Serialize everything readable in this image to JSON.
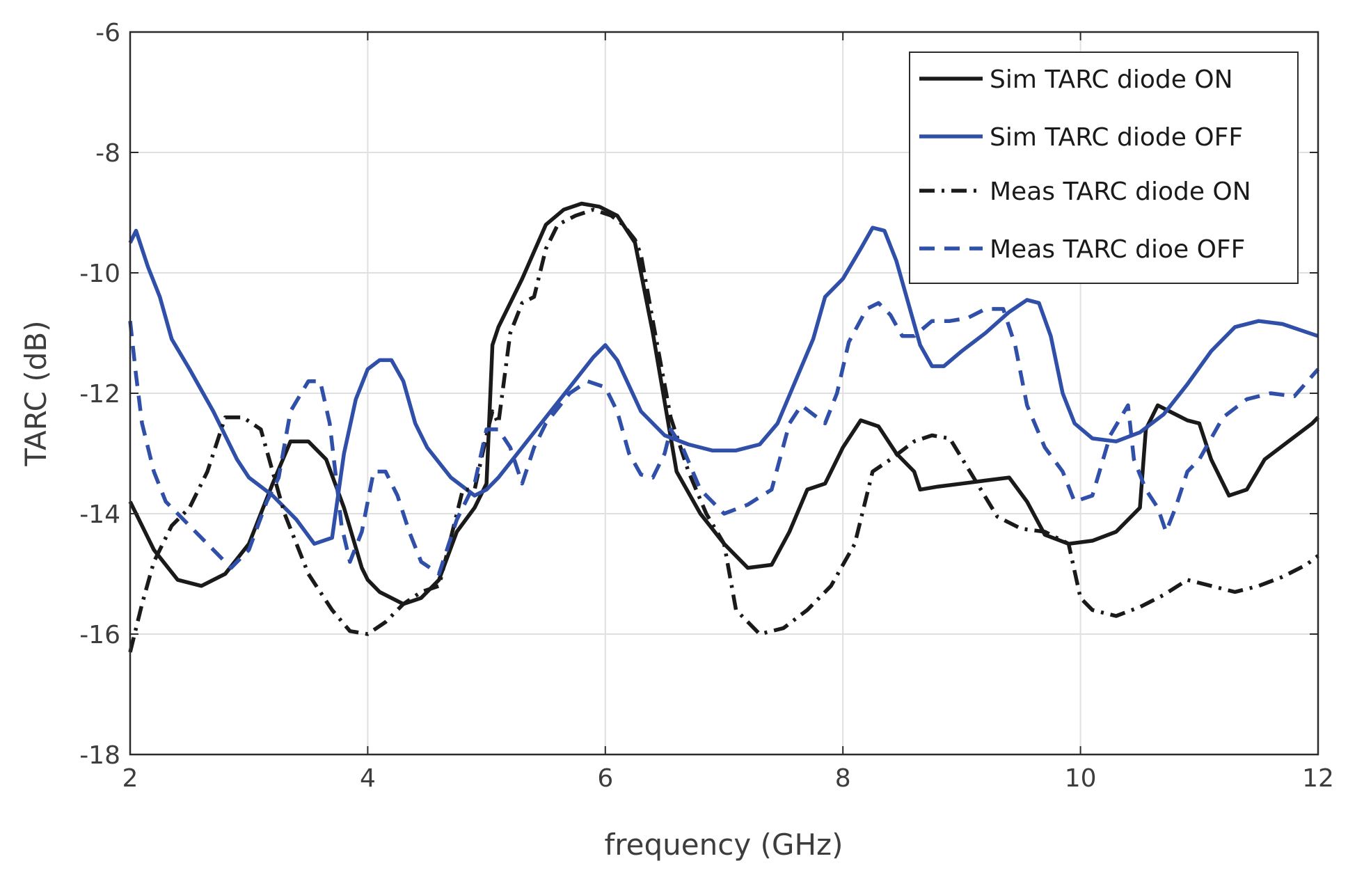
{
  "chart_data": {
    "type": "line",
    "title": "",
    "xlabel": "frequency (GHz)",
    "ylabel": "TARC (dB)",
    "xlim": [
      2,
      12
    ],
    "ylim": [
      -18,
      -6
    ],
    "xticks": [
      2,
      4,
      6,
      8,
      10,
      12
    ],
    "yticks": [
      -18,
      -16,
      -14,
      -12,
      -10,
      -8,
      -6
    ],
    "xtick_labels": [
      "2",
      "4",
      "6",
      "8",
      "10",
      "12"
    ],
    "ytick_labels": [
      "-18",
      "-16",
      "-14",
      "-12",
      "-10",
      "-8",
      "-6"
    ],
    "grid": true,
    "legend_position": "top-right",
    "series": [
      {
        "name": "Sim TARC diode ON",
        "color": "#1a1a1a",
        "dash": "solid",
        "x": [
          2.0,
          2.2,
          2.4,
          2.6,
          2.8,
          3.0,
          3.2,
          3.35,
          3.5,
          3.65,
          3.8,
          3.95,
          4.0,
          4.1,
          4.3,
          4.45,
          4.6,
          4.75,
          4.9,
          5.0,
          5.05,
          5.1,
          5.3,
          5.5,
          5.65,
          5.8,
          5.95,
          6.1,
          6.25,
          6.4,
          6.6,
          6.8,
          7.0,
          7.2,
          7.4,
          7.55,
          7.7,
          7.85,
          8.0,
          8.15,
          8.3,
          8.45,
          8.6,
          8.65,
          8.8,
          9.0,
          9.2,
          9.4,
          9.55,
          9.7,
          9.9,
          10.1,
          10.3,
          10.5,
          10.55,
          10.65,
          10.75,
          10.9,
          11.0,
          11.1,
          11.25,
          11.4,
          11.55,
          11.75,
          11.95,
          12.0
        ],
        "y": [
          -13.8,
          -14.6,
          -15.1,
          -15.2,
          -15.0,
          -14.5,
          -13.5,
          -12.8,
          -12.8,
          -13.1,
          -13.9,
          -14.9,
          -15.1,
          -15.3,
          -15.5,
          -15.4,
          -15.1,
          -14.3,
          -13.9,
          -13.5,
          -11.2,
          -10.9,
          -10.1,
          -9.2,
          -8.95,
          -8.85,
          -8.9,
          -9.05,
          -9.5,
          -11.0,
          -13.3,
          -14.0,
          -14.5,
          -14.9,
          -14.85,
          -14.3,
          -13.6,
          -13.5,
          -12.9,
          -12.45,
          -12.55,
          -13.0,
          -13.3,
          -13.6,
          -13.55,
          -13.5,
          -13.45,
          -13.4,
          -13.8,
          -14.35,
          -14.5,
          -14.45,
          -14.3,
          -13.9,
          -12.6,
          -12.2,
          -12.3,
          -12.45,
          -12.5,
          -13.1,
          -13.7,
          -13.6,
          -13.1,
          -12.8,
          -12.5,
          -12.4
        ]
      },
      {
        "name": "Sim TARC diode OFF",
        "color": "#2f4fa8",
        "dash": "solid",
        "x": [
          2.0,
          2.05,
          2.15,
          2.25,
          2.35,
          2.5,
          2.7,
          2.9,
          3.0,
          3.2,
          3.4,
          3.55,
          3.7,
          3.8,
          3.9,
          4.0,
          4.1,
          4.2,
          4.3,
          4.4,
          4.5,
          4.7,
          4.9,
          5.0,
          5.1,
          5.3,
          5.5,
          5.7,
          5.9,
          6.0,
          6.1,
          6.3,
          6.5,
          6.7,
          6.9,
          7.1,
          7.3,
          7.45,
          7.6,
          7.75,
          7.85,
          8.0,
          8.15,
          8.25,
          8.35,
          8.45,
          8.55,
          8.65,
          8.75,
          8.85,
          9.0,
          9.2,
          9.4,
          9.55,
          9.65,
          9.75,
          9.85,
          9.95,
          10.1,
          10.3,
          10.5,
          10.7,
          10.9,
          11.1,
          11.3,
          11.5,
          11.7,
          11.85,
          12.0
        ],
        "y": [
          -9.5,
          -9.3,
          -9.9,
          -10.4,
          -11.1,
          -11.6,
          -12.3,
          -13.1,
          -13.4,
          -13.7,
          -14.1,
          -14.5,
          -14.4,
          -13.0,
          -12.1,
          -11.6,
          -11.45,
          -11.45,
          -11.8,
          -12.5,
          -12.9,
          -13.4,
          -13.7,
          -13.6,
          -13.4,
          -12.9,
          -12.4,
          -11.9,
          -11.4,
          -11.2,
          -11.45,
          -12.3,
          -12.7,
          -12.85,
          -12.95,
          -12.95,
          -12.85,
          -12.5,
          -11.8,
          -11.1,
          -10.4,
          -10.1,
          -9.6,
          -9.25,
          -9.3,
          -9.8,
          -10.5,
          -11.2,
          -11.55,
          -11.55,
          -11.3,
          -11.0,
          -10.65,
          -10.45,
          -10.5,
          -11.05,
          -12.0,
          -12.5,
          -12.75,
          -12.8,
          -12.65,
          -12.35,
          -11.85,
          -11.3,
          -10.9,
          -10.8,
          -10.85,
          -10.95,
          -11.05
        ]
      },
      {
        "name": "Meas TARC diode ON",
        "color": "#1a1a1a",
        "dash": "dashdot",
        "x": [
          2.0,
          2.1,
          2.2,
          2.35,
          2.5,
          2.65,
          2.8,
          2.95,
          3.1,
          3.2,
          3.3,
          3.5,
          3.7,
          3.85,
          4.0,
          4.15,
          4.3,
          4.45,
          4.6,
          4.7,
          4.8,
          4.9,
          5.0,
          5.05,
          5.1,
          5.2,
          5.3,
          5.4,
          5.5,
          5.6,
          5.75,
          5.9,
          6.05,
          6.15,
          6.25,
          6.3,
          6.4,
          6.55,
          6.7,
          6.85,
          7.0,
          7.1,
          7.3,
          7.5,
          7.7,
          7.9,
          8.1,
          8.25,
          8.4,
          8.6,
          8.75,
          8.9,
          9.1,
          9.3,
          9.5,
          9.7,
          9.9,
          10.0,
          10.1,
          10.3,
          10.5,
          10.7,
          10.9,
          11.1,
          11.3,
          11.5,
          11.7,
          11.9,
          12.0
        ],
        "y": [
          -16.3,
          -15.5,
          -14.8,
          -14.2,
          -13.9,
          -13.3,
          -12.4,
          -12.4,
          -12.6,
          -13.3,
          -14.0,
          -15.0,
          -15.6,
          -15.95,
          -16.0,
          -15.8,
          -15.5,
          -15.3,
          -15.2,
          -14.4,
          -13.6,
          -13.6,
          -12.7,
          -12.3,
          -12.5,
          -11.0,
          -10.5,
          -10.4,
          -9.6,
          -9.2,
          -9.05,
          -8.95,
          -9.05,
          -9.2,
          -9.45,
          -9.7,
          -10.8,
          -12.4,
          -13.3,
          -14.0,
          -14.5,
          -15.6,
          -16.0,
          -15.9,
          -15.6,
          -15.2,
          -14.5,
          -13.3,
          -13.1,
          -12.8,
          -12.7,
          -12.75,
          -13.4,
          -14.05,
          -14.25,
          -14.3,
          -14.5,
          -15.4,
          -15.6,
          -15.7,
          -15.55,
          -15.35,
          -15.1,
          -15.2,
          -15.3,
          -15.2,
          -15.05,
          -14.85,
          -14.7
        ]
      },
      {
        "name": "Meas TARC dioe OFF",
        "color": "#2f4fa8",
        "dash": "dashed",
        "x": [
          2.0,
          2.05,
          2.1,
          2.2,
          2.3,
          2.4,
          2.55,
          2.7,
          2.85,
          3.0,
          3.15,
          3.25,
          3.35,
          3.5,
          3.6,
          3.68,
          3.78,
          3.85,
          3.95,
          4.05,
          4.15,
          4.25,
          4.35,
          4.45,
          4.6,
          4.75,
          4.9,
          5.0,
          5.1,
          5.2,
          5.3,
          5.4,
          5.5,
          5.7,
          5.85,
          6.0,
          6.1,
          6.2,
          6.3,
          6.4,
          6.5,
          6.55,
          6.65,
          6.8,
          7.0,
          7.2,
          7.4,
          7.55,
          7.65,
          7.75,
          7.85,
          7.95,
          8.05,
          8.2,
          8.3,
          8.4,
          8.5,
          8.6,
          8.75,
          8.9,
          9.05,
          9.2,
          9.35,
          9.45,
          9.55,
          9.7,
          9.85,
          9.95,
          10.1,
          10.25,
          10.4,
          10.45,
          10.55,
          10.65,
          10.72,
          10.8,
          10.9,
          11.0,
          11.2,
          11.4,
          11.6,
          11.8,
          12.0
        ],
        "y": [
          -10.8,
          -11.7,
          -12.5,
          -13.3,
          -13.8,
          -14.0,
          -14.3,
          -14.6,
          -14.9,
          -14.6,
          -13.8,
          -13.4,
          -12.3,
          -11.8,
          -11.8,
          -12.5,
          -14.2,
          -14.8,
          -14.3,
          -13.3,
          -13.3,
          -13.7,
          -14.3,
          -14.8,
          -15.0,
          -14.1,
          -13.5,
          -12.6,
          -12.6,
          -12.9,
          -13.5,
          -12.9,
          -12.5,
          -12.0,
          -11.8,
          -11.9,
          -12.3,
          -13.0,
          -13.35,
          -13.4,
          -13.0,
          -12.6,
          -12.9,
          -13.6,
          -14.0,
          -13.85,
          -13.6,
          -12.5,
          -12.2,
          -12.35,
          -12.5,
          -12.0,
          -11.15,
          -10.6,
          -10.5,
          -10.7,
          -11.05,
          -11.05,
          -10.8,
          -10.8,
          -10.75,
          -10.6,
          -10.6,
          -11.2,
          -12.2,
          -12.9,
          -13.3,
          -13.8,
          -13.7,
          -12.7,
          -12.2,
          -13.1,
          -13.6,
          -13.9,
          -14.3,
          -13.9,
          -13.3,
          -13.1,
          -12.4,
          -12.1,
          -12.0,
          -12.05,
          -11.6
        ]
      }
    ]
  }
}
